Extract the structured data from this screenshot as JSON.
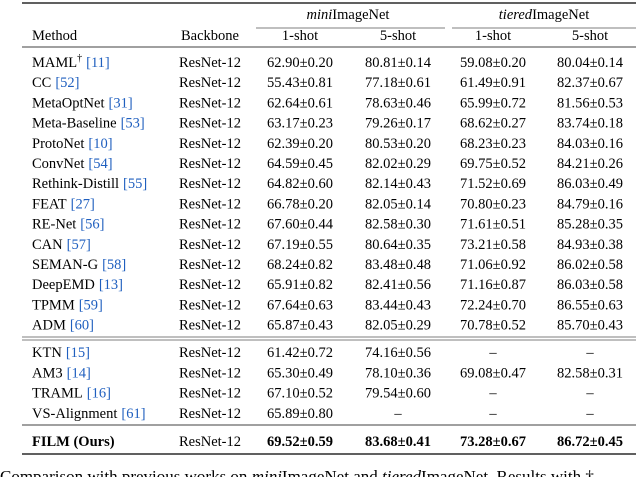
{
  "table": {
    "groups": [
      {
        "italic": "mini",
        "rest": "ImageNet"
      },
      {
        "italic": "tiered",
        "rest": "ImageNet"
      }
    ],
    "columns": [
      "Method",
      "Backbone",
      "1-shot",
      "5-shot",
      "1-shot",
      "5-shot"
    ],
    "sections": [
      [
        {
          "method": "MAML",
          "sup": "†",
          "cite": "[11]",
          "backbone": "ResNet-12",
          "cells": [
            "62.90±0.20",
            "80.81±0.14",
            "59.08±0.20",
            "80.04±0.14"
          ]
        },
        {
          "method": "CC",
          "cite": "[52]",
          "backbone": "ResNet-12",
          "cells": [
            "55.43±0.81",
            "77.18±0.61",
            "61.49±0.91",
            "82.37±0.67"
          ]
        },
        {
          "method": "MetaOptNet",
          "cite": "[31]",
          "backbone": "ResNet-12",
          "cells": [
            "62.64±0.61",
            "78.63±0.46",
            "65.99±0.72",
            "81.56±0.53"
          ]
        },
        {
          "method": "Meta-Baseline",
          "cite": "[53]",
          "backbone": "ResNet-12",
          "cells": [
            "63.17±0.23",
            "79.26±0.17",
            "68.62±0.27",
            "83.74±0.18"
          ]
        },
        {
          "method": "ProtoNet",
          "cite": "[10]",
          "backbone": "ResNet-12",
          "cells": [
            "62.39±0.20",
            "80.53±0.20",
            "68.23±0.23",
            "84.03±0.16"
          ]
        },
        {
          "method": "ConvNet",
          "cite": "[54]",
          "backbone": "ResNet-12",
          "cells": [
            "64.59±0.45",
            "82.02±0.29",
            "69.75±0.52",
            "84.21±0.26"
          ]
        },
        {
          "method": "Rethink-Distill",
          "cite": "[55]",
          "backbone": "ResNet-12",
          "cells": [
            "64.82±0.60",
            "82.14±0.43",
            "71.52±0.69",
            "86.03±0.49"
          ]
        },
        {
          "method": "FEAT",
          "cite": "[27]",
          "backbone": "ResNet-12",
          "cells": [
            "66.78±0.20",
            "82.05±0.14",
            "70.80±0.23",
            "84.79±0.16"
          ]
        },
        {
          "method": "RE-Net",
          "cite": "[56]",
          "backbone": "ResNet-12",
          "cells": [
            "67.60±0.44",
            "82.58±0.30",
            "71.61±0.51",
            "85.28±0.35"
          ]
        },
        {
          "method": "CAN",
          "cite": "[57]",
          "backbone": "ResNet-12",
          "cells": [
            "67.19±0.55",
            "80.64±0.35",
            "73.21±0.58",
            "84.93±0.38"
          ]
        },
        {
          "method": "SEMAN-G",
          "cite": "[58]",
          "backbone": "ResNet-12",
          "cells": [
            "68.24±0.82",
            "83.48±0.48",
            "71.06±0.92",
            "86.02±0.58"
          ]
        },
        {
          "method": "DeepEMD",
          "cite": "[13]",
          "backbone": "ResNet-12",
          "cells": [
            "65.91±0.82",
            "82.41±0.56",
            "71.16±0.87",
            "86.03±0.58"
          ]
        },
        {
          "method": "TPMM",
          "cite": "[59]",
          "backbone": "ResNet-12",
          "cells": [
            "67.64±0.63",
            "83.44±0.43",
            "72.24±0.70",
            "86.55±0.63"
          ]
        },
        {
          "method": "ADM",
          "cite": "[60]",
          "backbone": "ResNet-12",
          "cells": [
            "65.87±0.43",
            "82.05±0.29",
            "70.78±0.52",
            "85.70±0.43"
          ]
        }
      ],
      [
        {
          "method": "KTN",
          "cite": "[15]",
          "backbone": "ResNet-12",
          "cells": [
            "61.42±0.72",
            "74.16±0.56",
            "–",
            "–"
          ]
        },
        {
          "method": "AM3",
          "cite": "[14]",
          "backbone": "ResNet-12",
          "cells": [
            "65.30±0.49",
            "78.10±0.36",
            "69.08±0.47",
            "82.58±0.31"
          ]
        },
        {
          "method": "TRAML",
          "cite": "[16]",
          "backbone": "ResNet-12",
          "cells": [
            "67.10±0.52",
            "79.54±0.60",
            "–",
            "–"
          ]
        },
        {
          "method": "VS-Alignment",
          "cite": "[61]",
          "backbone": "ResNet-12",
          "cells": [
            "65.89±0.80",
            "–",
            "–",
            "–"
          ]
        }
      ],
      [
        {
          "method": "FILM (Ours)",
          "backbone": "ResNet-12",
          "bold": true,
          "cells": [
            "69.52±0.59",
            "83.68±0.41",
            "73.28±0.67",
            "86.72±0.45"
          ]
        }
      ]
    ],
    "caption": [
      {
        "text": "Comparison with previous works on "
      },
      {
        "text": "mini",
        "italic": true
      },
      {
        "text": "ImageNet and "
      },
      {
        "text": "tiered",
        "italic": true
      },
      {
        "text": "ImageNet. Results with "
      },
      {
        "text": "†"
      }
    ]
  }
}
